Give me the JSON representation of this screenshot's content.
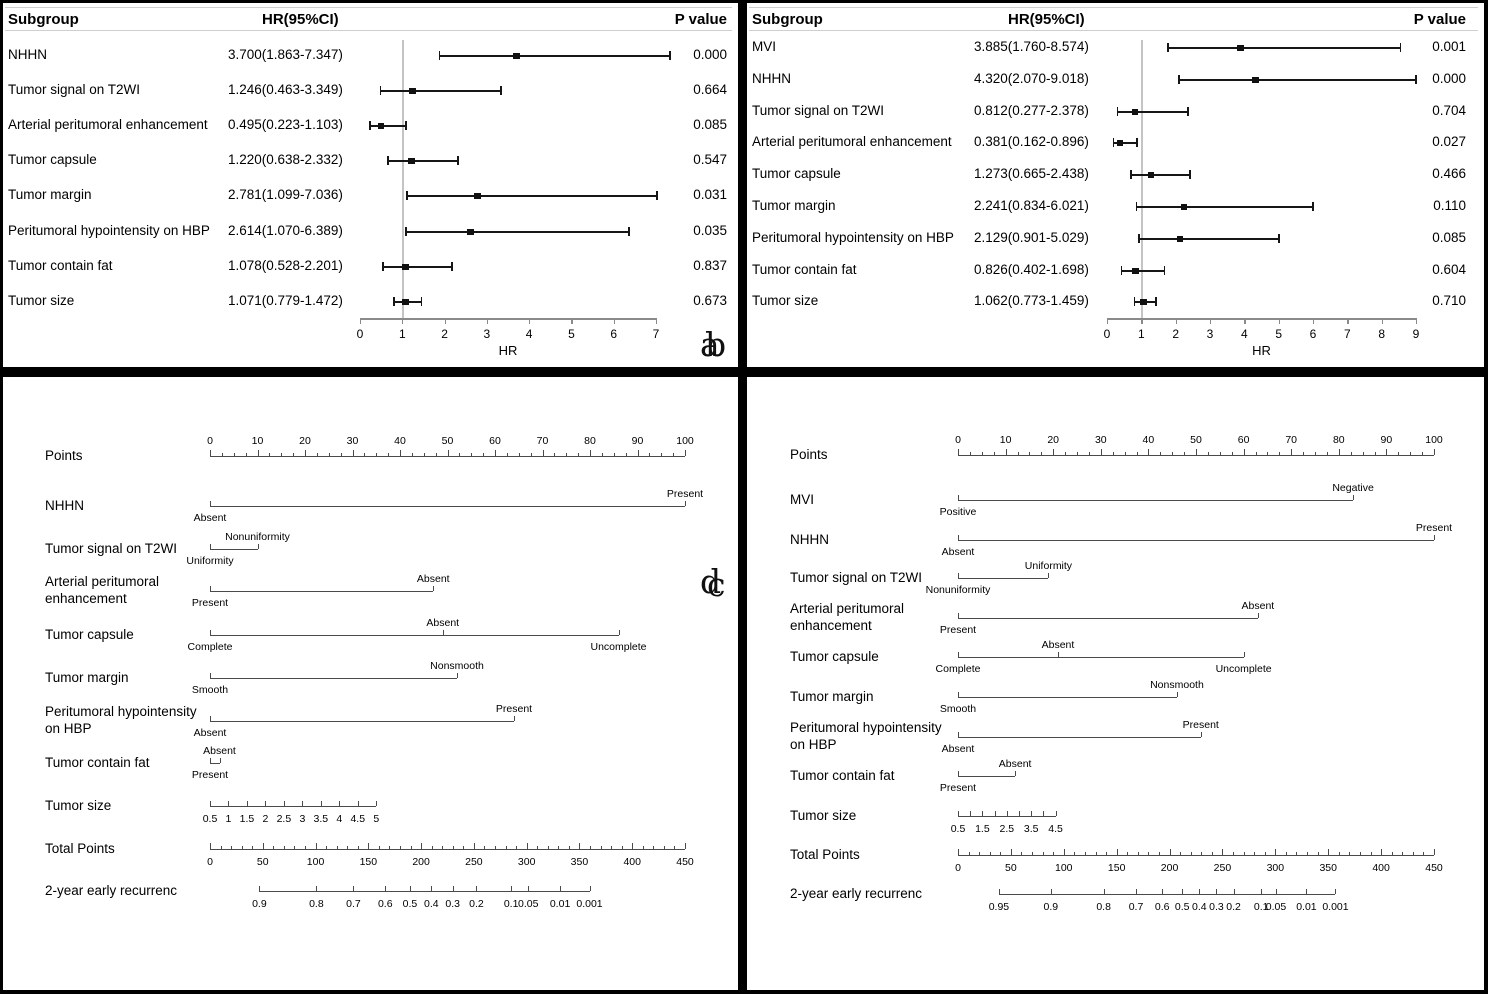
{
  "chart_data": [
    {
      "id": "a",
      "type": "forest",
      "letter": "a",
      "header": {
        "subgroup": "Subgroup",
        "hr_ci": "HR(95%CI)",
        "p_value": "P value"
      },
      "x_axis": {
        "label": "HR",
        "min": 0,
        "max": 7,
        "tick_labels": [
          "0",
          "1",
          "2",
          "3",
          "4",
          "5",
          "6",
          "7"
        ],
        "ref_line": 1
      },
      "rows": [
        {
          "subgroup": "NHHN",
          "hr_ci_text": "3.700(1.863-7.347)",
          "hr": 3.7,
          "ci_low": 1.863,
          "ci_high": 7.347,
          "p_value": "0.000"
        },
        {
          "subgroup": "Tumor signal on T2WI",
          "hr_ci_text": "1.246(0.463-3.349)",
          "hr": 1.246,
          "ci_low": 0.463,
          "ci_high": 3.349,
          "p_value": "0.664"
        },
        {
          "subgroup": "Arterial peritumoral enhancement",
          "hr_ci_text": "0.495(0.223-1.103)",
          "hr": 0.495,
          "ci_low": 0.223,
          "ci_high": 1.103,
          "p_value": "0.085"
        },
        {
          "subgroup": "Tumor capsule",
          "hr_ci_text": "1.220(0.638-2.332)",
          "hr": 1.22,
          "ci_low": 0.638,
          "ci_high": 2.332,
          "p_value": "0.547"
        },
        {
          "subgroup": "Tumor margin",
          "hr_ci_text": "2.781(1.099-7.036)",
          "hr": 2.781,
          "ci_low": 1.099,
          "ci_high": 7.036,
          "p_value": "0.031"
        },
        {
          "subgroup": "Peritumoral hypointensity on HBP",
          "hr_ci_text": "2.614(1.070-6.389)",
          "hr": 2.614,
          "ci_low": 1.07,
          "ci_high": 6.389,
          "p_value": "0.035"
        },
        {
          "subgroup": "Tumor contain fat",
          "hr_ci_text": "1.078(0.528-2.201)",
          "hr": 1.078,
          "ci_low": 0.528,
          "ci_high": 2.201,
          "p_value": "0.837"
        },
        {
          "subgroup": "Tumor size",
          "hr_ci_text": "1.071(0.779-1.472)",
          "hr": 1.071,
          "ci_low": 0.779,
          "ci_high": 1.472,
          "p_value": "0.673"
        }
      ]
    },
    {
      "id": "b",
      "type": "forest",
      "letter": "b",
      "header": {
        "subgroup": "Subgroup",
        "hr_ci": "HR(95%CI)",
        "p_value": "P value"
      },
      "x_axis": {
        "label": "HR",
        "min": 0,
        "max": 9,
        "tick_labels": [
          "0",
          "1",
          "2",
          "3",
          "4",
          "5",
          "6",
          "7",
          "8",
          "9"
        ],
        "ref_line": 1
      },
      "rows": [
        {
          "subgroup": "MVI",
          "hr_ci_text": "3.885(1.760-8.574)",
          "hr": 3.885,
          "ci_low": 1.76,
          "ci_high": 8.574,
          "p_value": "0.001"
        },
        {
          "subgroup": "NHHN",
          "hr_ci_text": "4.320(2.070-9.018)",
          "hr": 4.32,
          "ci_low": 2.07,
          "ci_high": 9.018,
          "p_value": "0.000"
        },
        {
          "subgroup": "Tumor signal on T2WI",
          "hr_ci_text": "0.812(0.277-2.378)",
          "hr": 0.812,
          "ci_low": 0.277,
          "ci_high": 2.378,
          "p_value": "0.704"
        },
        {
          "subgroup": "Arterial peritumoral enhancement",
          "hr_ci_text": "0.381(0.162-0.896)",
          "hr": 0.381,
          "ci_low": 0.162,
          "ci_high": 0.896,
          "p_value": "0.027"
        },
        {
          "subgroup": "Tumor capsule",
          "hr_ci_text": "1.273(0.665-2.438)",
          "hr": 1.273,
          "ci_low": 0.665,
          "ci_high": 2.438,
          "p_value": "0.466"
        },
        {
          "subgroup": "Tumor margin",
          "hr_ci_text": "2.241(0.834-6.021)",
          "hr": 2.241,
          "ci_low": 0.834,
          "ci_high": 6.021,
          "p_value": "0.110"
        },
        {
          "subgroup": "Peritumoral hypointensity on HBP",
          "hr_ci_text": "2.129(0.901-5.029)",
          "hr": 2.129,
          "ci_low": 0.901,
          "ci_high": 5.029,
          "p_value": "0.085"
        },
        {
          "subgroup": "Tumor contain fat",
          "hr_ci_text": "0.826(0.402-1.698)",
          "hr": 0.826,
          "ci_low": 0.402,
          "ci_high": 1.698,
          "p_value": "0.604"
        },
        {
          "subgroup": "Tumor size",
          "hr_ci_text": "1.062(0.773-1.459)",
          "hr": 1.062,
          "ci_low": 0.773,
          "ci_high": 1.459,
          "p_value": "0.710"
        }
      ]
    },
    {
      "id": "c",
      "type": "nomogram",
      "letter": "c",
      "rows": [
        {
          "kind": "points_scale",
          "label": [
            "Points"
          ],
          "min": 0,
          "max": 100,
          "step": 10,
          "tick_labels": [
            "0",
            "10",
            "20",
            "30",
            "40",
            "50",
            "60",
            "70",
            "80",
            "90",
            "100"
          ]
        },
        {
          "kind": "factor",
          "label": [
            "NHHN"
          ],
          "levels": [
            {
              "text": "Absent",
              "at": 0,
              "side": "below"
            },
            {
              "text": "Present",
              "at": 100,
              "side": "above"
            }
          ]
        },
        {
          "kind": "factor",
          "label": [
            "Tumor signal on T2WI"
          ],
          "levels": [
            {
              "text": "Uniformity",
              "at": 0,
              "side": "below"
            },
            {
              "text": "Nonuniformity",
              "at": 10,
              "side": "above"
            }
          ]
        },
        {
          "kind": "factor",
          "label": [
            "Arterial peritumoral",
            "enhancement"
          ],
          "levels": [
            {
              "text": "Present",
              "at": 0,
              "side": "below"
            },
            {
              "text": "Absent",
              "at": 47,
              "side": "above"
            }
          ]
        },
        {
          "kind": "factor",
          "label": [
            "Tumor capsule"
          ],
          "levels": [
            {
              "text": "Complete",
              "at": 0,
              "side": "below"
            },
            {
              "text": "Absent",
              "at": 49,
              "side": "above"
            },
            {
              "text": "Uncomplete",
              "at": 86,
              "side": "below"
            }
          ]
        },
        {
          "kind": "factor",
          "label": [
            "Tumor margin"
          ],
          "levels": [
            {
              "text": "Smooth",
              "at": 0,
              "side": "below"
            },
            {
              "text": "Nonsmooth",
              "at": 52,
              "side": "above"
            }
          ]
        },
        {
          "kind": "factor",
          "label": [
            "Peritumoral hypointensity",
            "on HBP"
          ],
          "levels": [
            {
              "text": "Absent",
              "at": 0,
              "side": "below"
            },
            {
              "text": "Present",
              "at": 64,
              "side": "above"
            }
          ]
        },
        {
          "kind": "factor",
          "label": [
            "Tumor contain fat"
          ],
          "levels": [
            {
              "text": "Present",
              "at": 0,
              "side": "below"
            },
            {
              "text": "Absent",
              "at": 2,
              "side": "above"
            }
          ]
        },
        {
          "kind": "numeric",
          "label": [
            "Tumor size"
          ],
          "span_pts": [
            0,
            35
          ],
          "tick_labels": [
            "0.5",
            "1",
            "1.5",
            "2",
            "2.5",
            "3",
            "3.5",
            "4",
            "4.5",
            "5"
          ]
        },
        {
          "kind": "total_points",
          "label": [
            "Total Points"
          ],
          "min": 0,
          "max": 450,
          "step": 50,
          "minor_step": 10,
          "tick_labels": [
            "0",
            "50",
            "100",
            "150",
            "200",
            "250",
            "300",
            "350",
            "400",
            "450"
          ]
        },
        {
          "kind": "prob",
          "label": [
            "2-year early recurrenc"
          ],
          "ticks": [
            {
              "text": "0.9",
              "at": 10.4
            },
            {
              "text": "0.8",
              "at": 22.4
            },
            {
              "text": "0.7",
              "at": 30.2
            },
            {
              "text": "0.6",
              "at": 36.9
            },
            {
              "text": "0.5",
              "at": 42.1
            },
            {
              "text": "0.4",
              "at": 46.6
            },
            {
              "text": "0.3",
              "at": 51.1
            },
            {
              "text": "0.2",
              "at": 56.1
            },
            {
              "text": "0.1",
              "at": 63.4
            },
            {
              "text": "0.05",
              "at": 67
            },
            {
              "text": "0.01",
              "at": 73.7
            },
            {
              "text": "0.001",
              "at": 79.9
            }
          ]
        }
      ]
    },
    {
      "id": "d",
      "type": "nomogram",
      "letter": "d",
      "rows": [
        {
          "kind": "points_scale",
          "label": [
            "Points"
          ],
          "min": 0,
          "max": 100,
          "step": 10,
          "tick_labels": [
            "0",
            "10",
            "20",
            "30",
            "40",
            "50",
            "60",
            "70",
            "80",
            "90",
            "100"
          ]
        },
        {
          "kind": "factor",
          "label": [
            "MVI"
          ],
          "levels": [
            {
              "text": "Positive",
              "at": 0,
              "side": "below"
            },
            {
              "text": "Negative",
              "at": 83,
              "side": "above"
            }
          ]
        },
        {
          "kind": "factor",
          "label": [
            "NHHN"
          ],
          "levels": [
            {
              "text": "Absent",
              "at": 0,
              "side": "below"
            },
            {
              "text": "Present",
              "at": 100,
              "side": "above"
            }
          ]
        },
        {
          "kind": "factor",
          "label": [
            "Tumor signal on T2WI"
          ],
          "levels": [
            {
              "text": "Nonuniformity",
              "at": 0,
              "side": "below"
            },
            {
              "text": "Uniformity",
              "at": 19,
              "side": "above"
            }
          ]
        },
        {
          "kind": "factor",
          "label": [
            "Arterial peritumoral",
            "enhancement"
          ],
          "levels": [
            {
              "text": "Present",
              "at": 0,
              "side": "below"
            },
            {
              "text": "Absent",
              "at": 63,
              "side": "above"
            }
          ]
        },
        {
          "kind": "factor",
          "label": [
            "Tumor capsule"
          ],
          "levels": [
            {
              "text": "Complete",
              "at": 0,
              "side": "below"
            },
            {
              "text": "Absent",
              "at": 21,
              "side": "above"
            },
            {
              "text": "Uncomplete",
              "at": 60,
              "side": "below"
            }
          ]
        },
        {
          "kind": "factor",
          "label": [
            "Tumor margin"
          ],
          "levels": [
            {
              "text": "Smooth",
              "at": 0,
              "side": "below"
            },
            {
              "text": "Nonsmooth",
              "at": 46,
              "side": "above"
            }
          ]
        },
        {
          "kind": "factor",
          "label": [
            "Peritumoral hypointensity",
            "on HBP"
          ],
          "levels": [
            {
              "text": "Absent",
              "at": 0,
              "side": "below"
            },
            {
              "text": "Present",
              "at": 51,
              "side": "above"
            }
          ]
        },
        {
          "kind": "factor",
          "label": [
            "Tumor contain fat"
          ],
          "levels": [
            {
              "text": "Present",
              "at": 0,
              "side": "below"
            },
            {
              "text": "Absent",
              "at": 12,
              "side": "above"
            }
          ]
        },
        {
          "kind": "numeric",
          "label": [
            "Tumor size"
          ],
          "span_pts": [
            0,
            20.5
          ],
          "tick_labels": [
            "0.5",
            "",
            "1.5",
            "",
            "2.5",
            "",
            "3.5",
            "",
            "4.5"
          ]
        },
        {
          "kind": "total_points",
          "label": [
            "Total Points"
          ],
          "min": 0,
          "max": 450,
          "step": 50,
          "minor_step": 10,
          "tick_labels": [
            "0",
            "50",
            "100",
            "150",
            "200",
            "250",
            "300",
            "350",
            "400",
            "450"
          ]
        },
        {
          "kind": "prob",
          "label": [
            "2-year early recurrenc"
          ],
          "ticks": [
            {
              "text": "0.95",
              "at": 8.6
            },
            {
              "text": "0.9",
              "at": 19.5
            },
            {
              "text": "0.8",
              "at": 30.6
            },
            {
              "text": "0.7",
              "at": 37.4
            },
            {
              "text": "0.6",
              "at": 42.9
            },
            {
              "text": "0.5",
              "at": 47.1
            },
            {
              "text": "0.4",
              "at": 50.7
            },
            {
              "text": "0.3",
              "at": 54.3
            },
            {
              "text": "0.2",
              "at": 57.9
            },
            {
              "text": "0.1",
              "at": 63.7
            },
            {
              "text": "0.05",
              "at": 66.8
            },
            {
              "text": "0.01",
              "at": 73.2
            },
            {
              "text": "0.001",
              "at": 79.3
            }
          ]
        }
      ]
    }
  ]
}
